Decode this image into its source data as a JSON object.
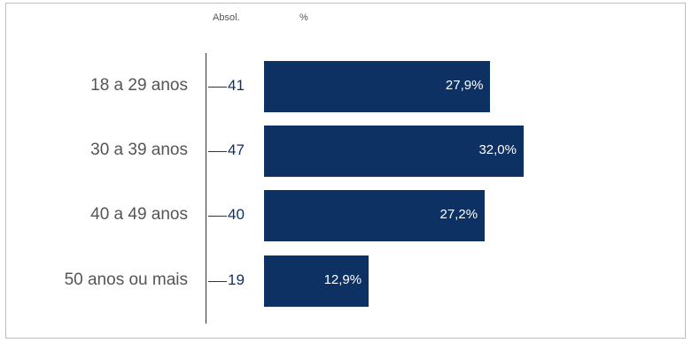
{
  "chart_data": {
    "type": "bar",
    "orientation": "horizontal",
    "column_headers": {
      "absolute": "Absol.",
      "percent": "%"
    },
    "categories": [
      "18 a 29 anos",
      "30 a 39 anos",
      "40 a 49 anos",
      "50 anos ou mais"
    ],
    "absolute_values": [
      41,
      47,
      40,
      19
    ],
    "percent_values": [
      27.9,
      32.0,
      27.2,
      12.9
    ],
    "percent_labels": [
      "27,9%",
      "32,0%",
      "27,2%",
      "12,9%"
    ],
    "bar_color": "#0e3163",
    "xlim": [
      0,
      35
    ]
  }
}
